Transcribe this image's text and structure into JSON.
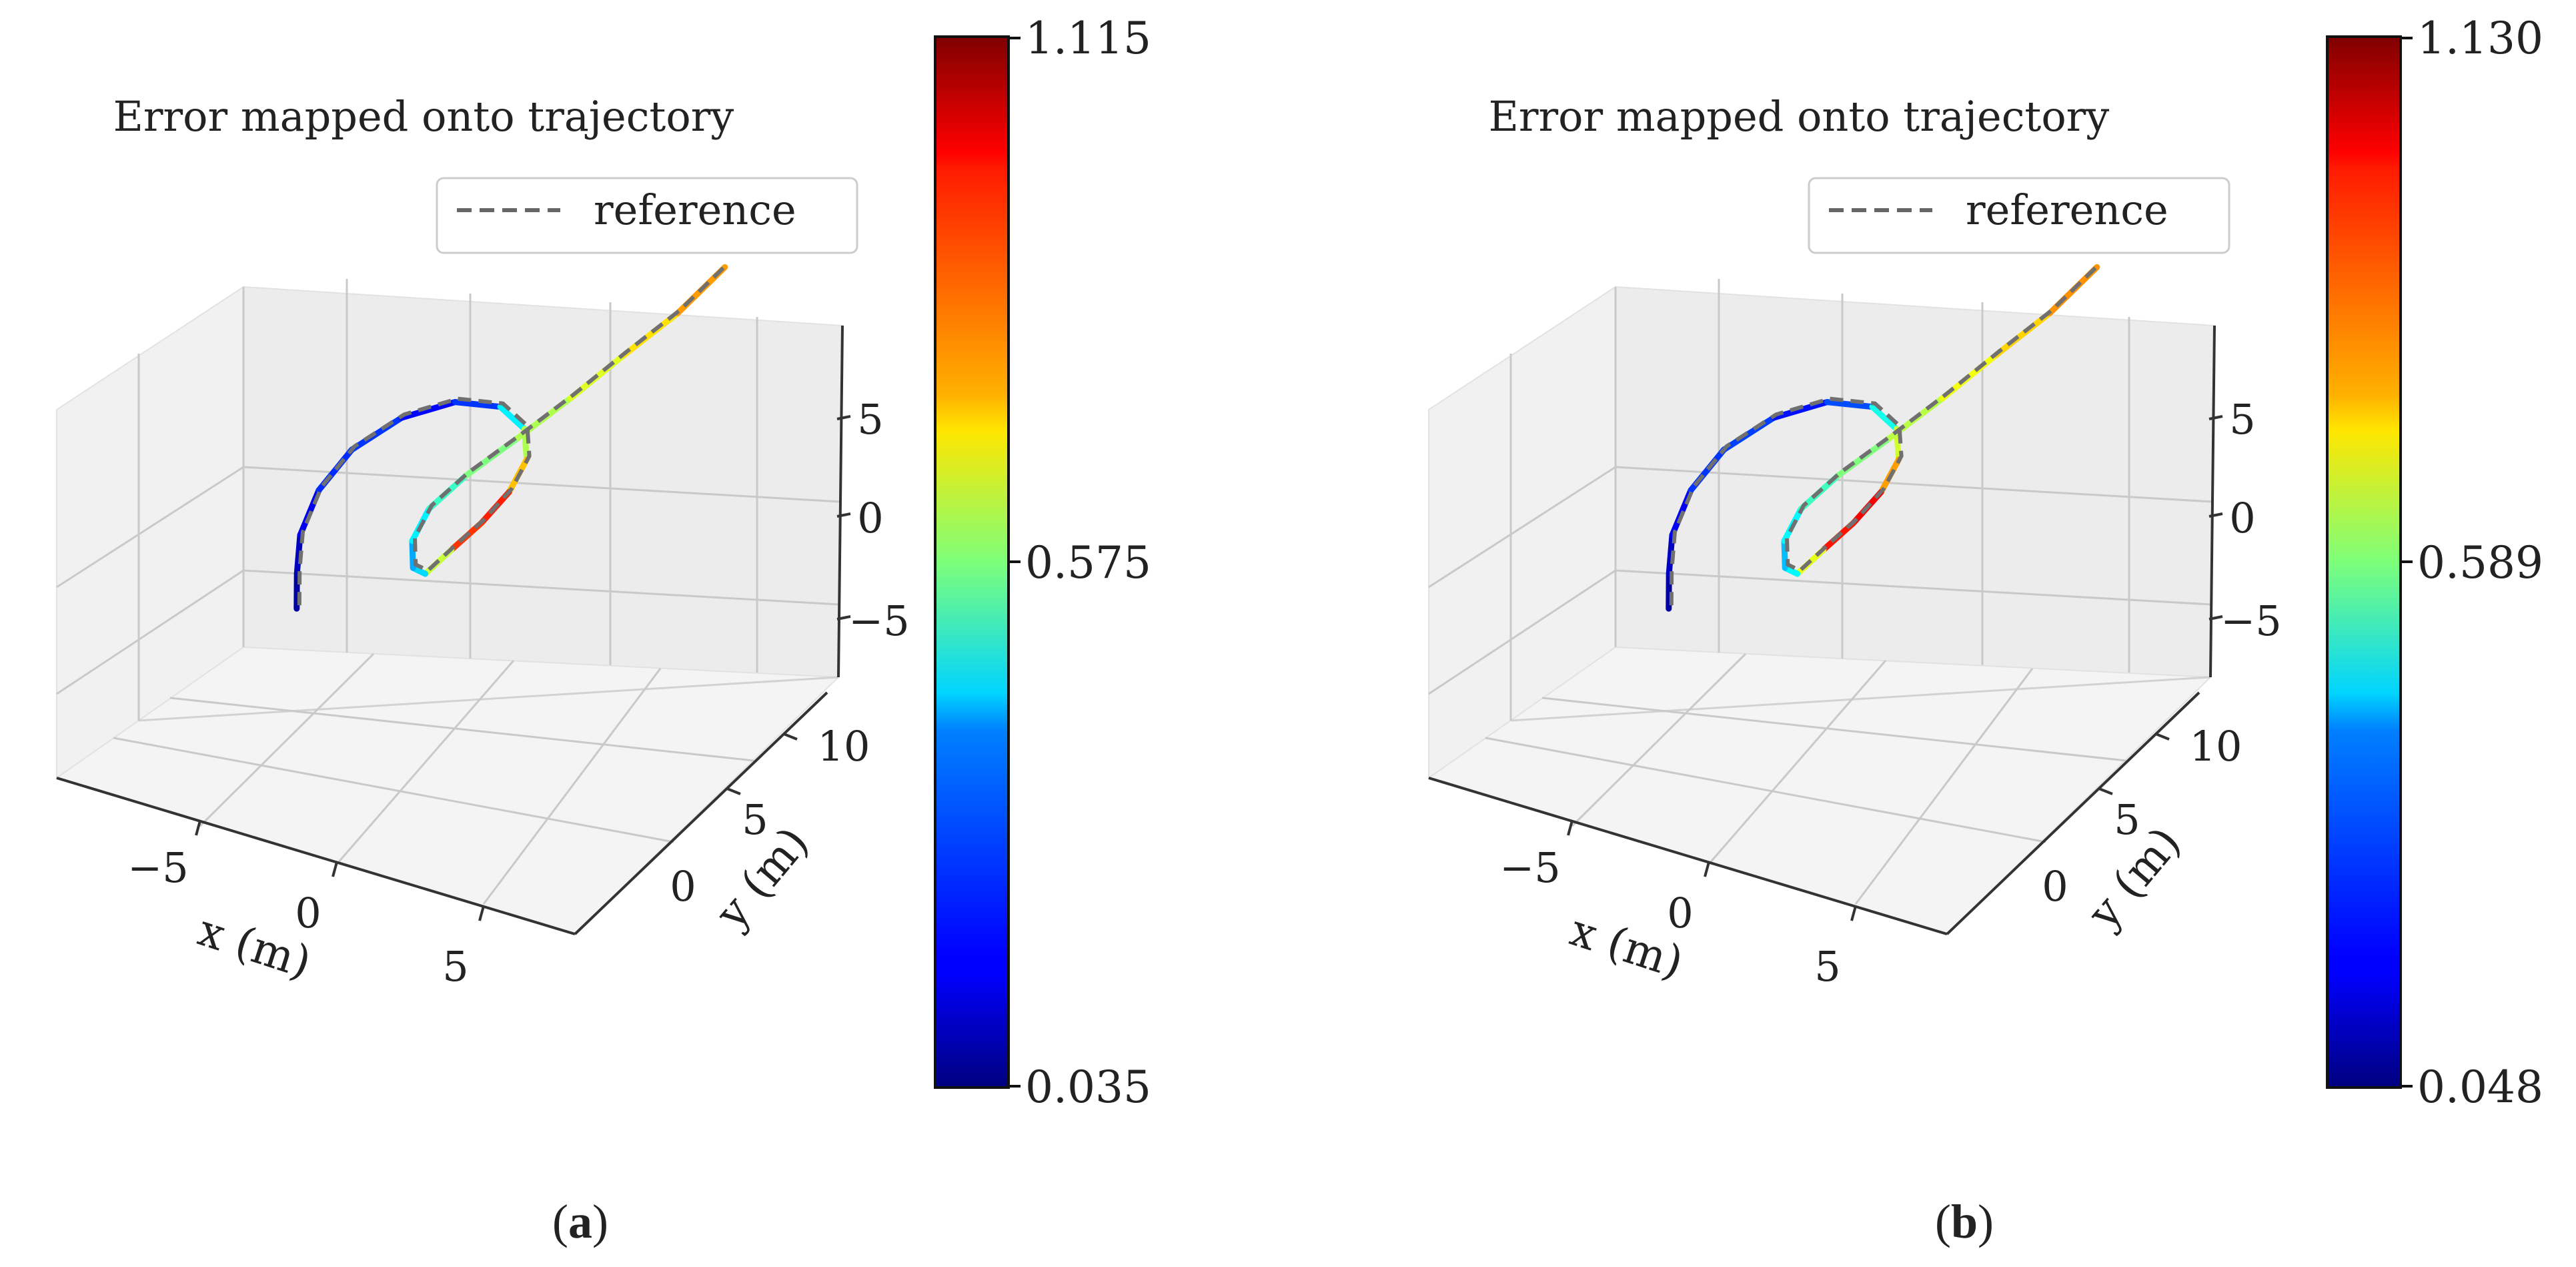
{
  "chart_data": [
    {
      "type": "line",
      "subtype": "3d-trajectory",
      "panel": "a",
      "title": "Error mapped onto trajectory",
      "xlabel": "x (m)",
      "ylabel": "y (m)",
      "zlabel": "",
      "x_ticks": [
        "−5",
        "0",
        "5"
      ],
      "y_ticks": [
        "0",
        "5",
        "10"
      ],
      "z_ticks": [
        "5",
        "0",
        "−5"
      ],
      "legend": [
        "reference"
      ],
      "legend_position": "top-right",
      "colorbar": {
        "min": 0.035,
        "mid": 0.575,
        "max": 1.115,
        "labels": [
          "1.115",
          "0.575",
          "0.035"
        ],
        "colormap": "jet"
      },
      "reference_trajectory": {
        "x": [
          -4.8,
          -5.2,
          -5.5,
          -5.3,
          -4.5,
          -3.0,
          -1.2,
          0.5,
          1.6,
          2.0,
          1.7,
          1.0,
          0.2,
          -0.5,
          -1.0,
          -1.3,
          -1.0,
          0.0,
          1.5,
          3.0,
          4.5,
          6.0,
          7.2
        ],
        "y": [
          0.0,
          1.5,
          3.0,
          4.6,
          5.8,
          6.5,
          6.6,
          6.0,
          5.0,
          3.8,
          2.7,
          1.8,
          1.0,
          0.3,
          0.6,
          1.6,
          2.6,
          3.5,
          4.5,
          5.6,
          6.8,
          8.0,
          9.5
        ],
        "z": [
          -2.0,
          -1.5,
          -0.8,
          0.0,
          0.8,
          1.4,
          1.6,
          1.4,
          0.8,
          0.2,
          -0.4,
          -1.0,
          -1.4,
          -1.8,
          -1.6,
          -1.0,
          -0.3,
          0.3,
          0.9,
          1.5,
          2.2,
          2.8,
          3.4
        ]
      },
      "error_values": [
        0.06,
        0.08,
        0.12,
        0.18,
        0.25,
        0.2,
        0.15,
        0.3,
        0.55,
        0.7,
        0.85,
        1.05,
        0.8,
        0.5,
        0.3,
        0.4,
        0.45,
        0.55,
        0.6,
        0.65,
        0.7,
        0.78,
        0.85
      ]
    },
    {
      "type": "line",
      "subtype": "3d-trajectory",
      "panel": "b",
      "title": "Error mapped onto trajectory",
      "xlabel": "x (m)",
      "ylabel": "y (m)",
      "zlabel": "",
      "x_ticks": [
        "−5",
        "0",
        "5"
      ],
      "y_ticks": [
        "0",
        "5",
        "10"
      ],
      "z_ticks": [
        "5",
        "0",
        "−5"
      ],
      "legend": [
        "reference"
      ],
      "legend_position": "top-right",
      "colorbar": {
        "min": 0.048,
        "mid": 0.589,
        "max": 1.13,
        "labels": [
          "1.130",
          "0.589",
          "0.048"
        ],
        "colormap": "jet"
      },
      "reference_trajectory": {
        "x": [
          -4.8,
          -5.2,
          -5.5,
          -5.3,
          -4.5,
          -3.0,
          -1.2,
          0.5,
          1.6,
          2.0,
          1.7,
          1.0,
          0.2,
          -0.5,
          -1.0,
          -1.3,
          -1.0,
          0.0,
          1.5,
          3.0,
          4.5,
          6.0,
          7.2
        ],
        "y": [
          0.0,
          1.5,
          3.0,
          4.6,
          5.8,
          6.5,
          6.6,
          6.0,
          5.0,
          3.8,
          2.7,
          1.8,
          1.0,
          0.3,
          0.6,
          1.6,
          2.6,
          3.5,
          4.5,
          5.6,
          6.8,
          8.0,
          9.5
        ],
        "z": [
          -2.0,
          -1.5,
          -0.8,
          0.0,
          0.8,
          1.4,
          1.6,
          1.4,
          0.8,
          0.2,
          -0.4,
          -1.0,
          -1.4,
          -1.8,
          -1.6,
          -1.0,
          -0.3,
          0.3,
          0.9,
          1.5,
          2.2,
          2.8,
          3.4
        ]
      },
      "error_values": [
        0.07,
        0.1,
        0.14,
        0.2,
        0.28,
        0.22,
        0.18,
        0.35,
        0.6,
        0.75,
        0.9,
        1.1,
        0.85,
        0.55,
        0.35,
        0.42,
        0.48,
        0.56,
        0.62,
        0.68,
        0.74,
        0.8,
        0.88
      ]
    }
  ],
  "captions": [
    {
      "open": "(",
      "letter": "a",
      "close": ")"
    },
    {
      "open": "(",
      "letter": "b",
      "close": ")"
    }
  ]
}
